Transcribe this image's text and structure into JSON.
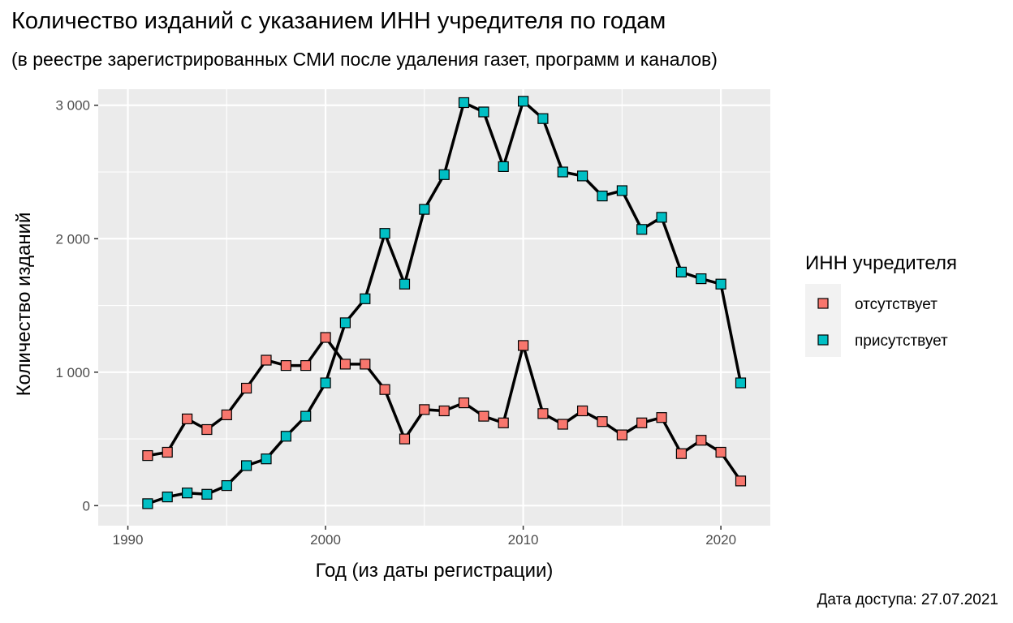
{
  "chart_data": {
    "type": "line",
    "title": "Количество изданий с указанием ИНН учредителя по годам",
    "subtitle": "(в реестре зарегистрированных СМИ после удаления газет, программ и каналов)",
    "xlabel": "Год (из даты регистрации)",
    "ylabel": "Количество изданий",
    "caption": "Дата доступа: 27.07.2021",
    "xlim": [
      1988.5,
      2022.5
    ],
    "ylim": [
      -150,
      3120
    ],
    "xticks": [
      1990,
      2000,
      2010,
      2020
    ],
    "yticks": [
      0,
      1000,
      2000,
      3000
    ],
    "ytick_labels": [
      "0",
      "1 000",
      "2 000",
      "3 000"
    ],
    "grid": true,
    "legend": {
      "title": "ИНН учредителя",
      "position": "right"
    },
    "colors": {
      "panel": "#EBEBEB",
      "grid": "#FFFFFF",
      "line": "#000000"
    },
    "x": [
      1991,
      1992,
      1993,
      1994,
      1995,
      1996,
      1997,
      1998,
      1999,
      2000,
      2001,
      2002,
      2003,
      2004,
      2005,
      2006,
      2007,
      2008,
      2009,
      2010,
      2011,
      2012,
      2013,
      2014,
      2015,
      2016,
      2017,
      2018,
      2019,
      2020,
      2021
    ],
    "series": [
      {
        "name": "отсутствует",
        "color": "#F8766D",
        "values": [
          375,
          400,
          650,
          570,
          680,
          880,
          1090,
          1050,
          1050,
          1260,
          1060,
          1060,
          870,
          500,
          720,
          710,
          770,
          670,
          620,
          1200,
          690,
          610,
          710,
          630,
          530,
          620,
          660,
          390,
          490,
          400,
          185
        ]
      },
      {
        "name": "присутствует",
        "color": "#00BFC4",
        "values": [
          15,
          65,
          95,
          85,
          150,
          300,
          350,
          520,
          670,
          920,
          1370,
          1550,
          2040,
          1660,
          2220,
          2480,
          3020,
          2950,
          2540,
          3030,
          2900,
          2500,
          2470,
          2320,
          2360,
          2070,
          2160,
          1750,
          1700,
          1660,
          920
        ]
      }
    ]
  }
}
